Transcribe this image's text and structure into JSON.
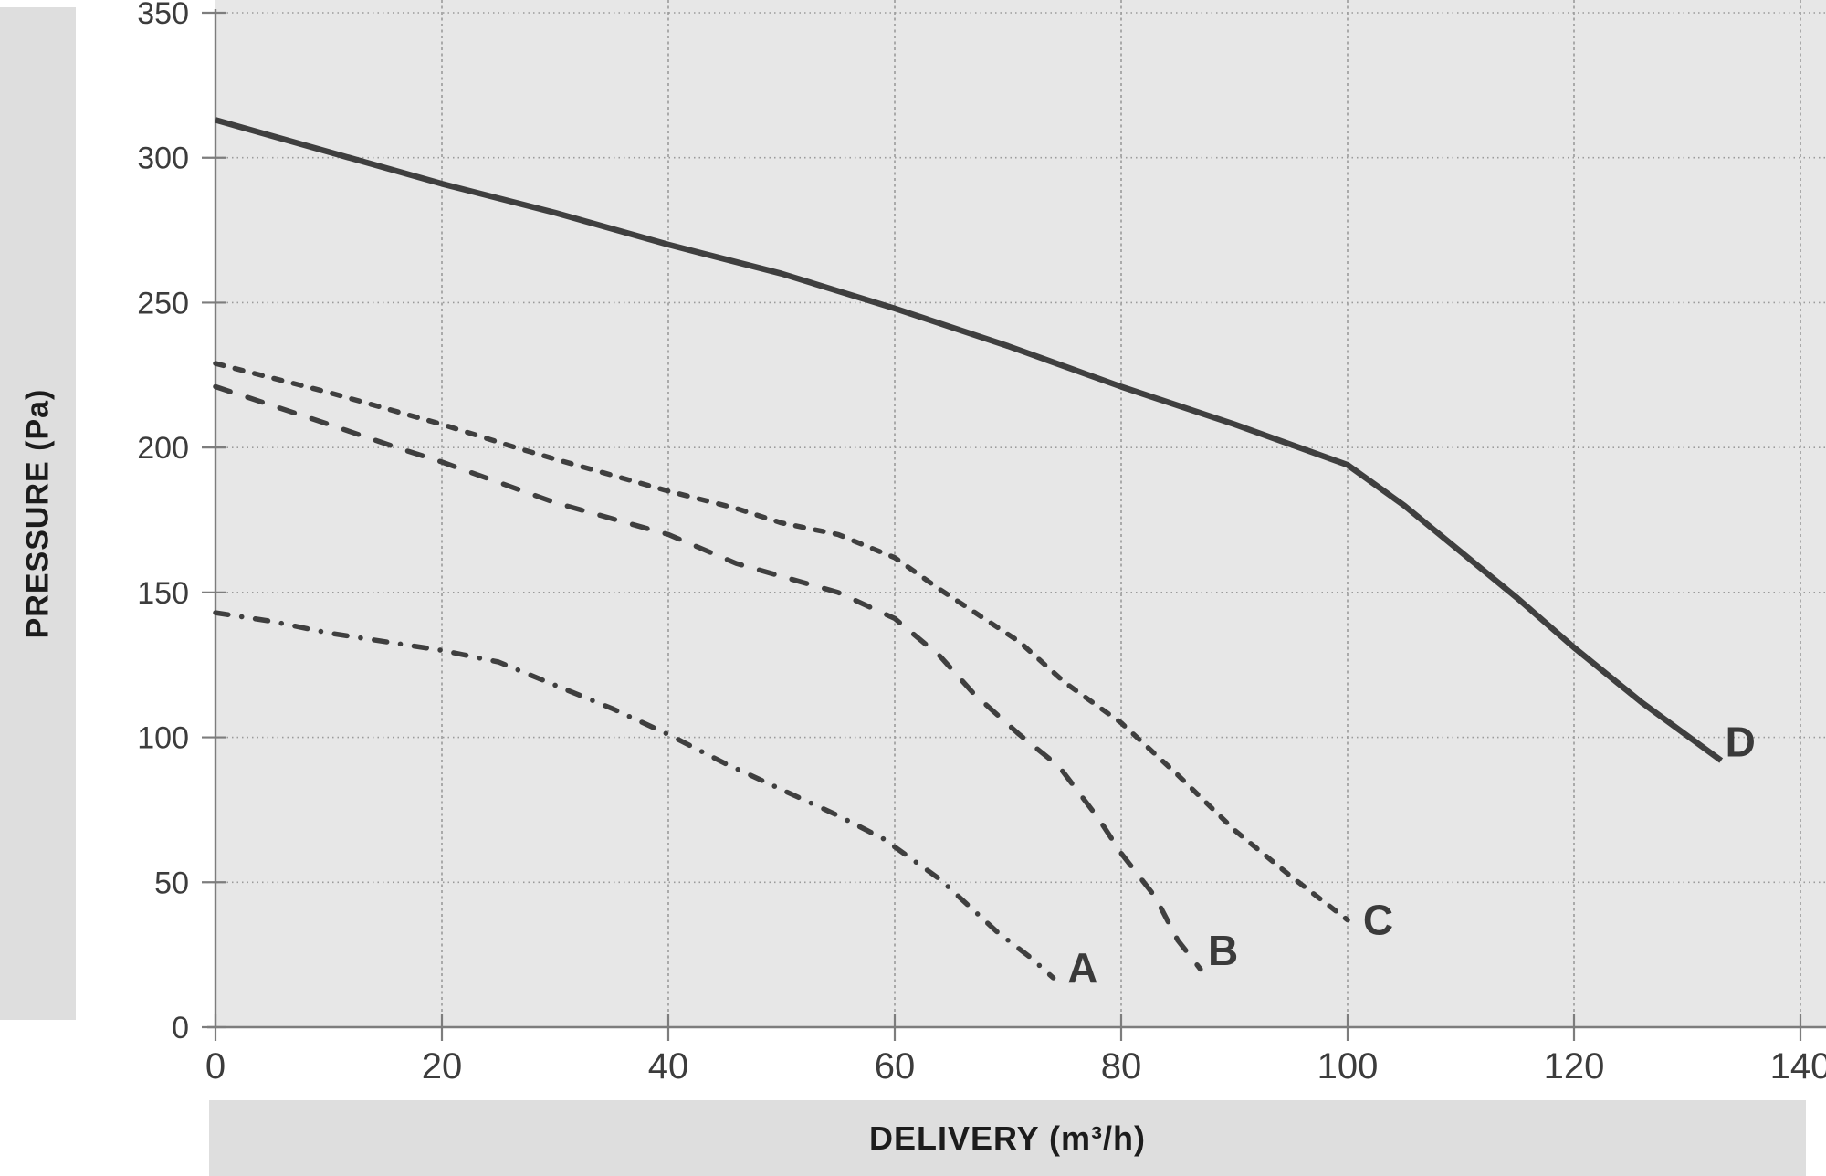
{
  "y_axis": {
    "title": "PRESSURE (Pa)",
    "ticks": [
      0,
      50,
      100,
      150,
      200,
      250,
      300,
      350
    ],
    "range": [
      0,
      350
    ]
  },
  "x_axis": {
    "title": "DELIVERY (m³/h)",
    "ticks": [
      0,
      20,
      40,
      60,
      80,
      100,
      120,
      140
    ],
    "range": [
      0,
      140
    ]
  },
  "colors": {
    "plot_background": "#e7e7e7",
    "side_strip": "#dedede",
    "gridline": "#9b9b9b",
    "axis": "#7d7d7d",
    "curve": "#3f3f3f",
    "tick_text": "#3c3c3c",
    "title_text": "#1c1c1c"
  },
  "chart_data": {
    "type": "line",
    "title": "",
    "xlabel": "DELIVERY (m³/h)",
    "ylabel": "PRESSURE (Pa)",
    "xlim": [
      0,
      140
    ],
    "ylim": [
      0,
      350
    ],
    "grid": true,
    "legend_position": "inline-end-labels",
    "series": [
      {
        "name": "A",
        "line_style": "dash-dot",
        "label_at": [
          76.6,
          20.5
        ],
        "points": [
          [
            0,
            143
          ],
          [
            5,
            140
          ],
          [
            10,
            136
          ],
          [
            15,
            133
          ],
          [
            20,
            130
          ],
          [
            25,
            126
          ],
          [
            30,
            118
          ],
          [
            35,
            110
          ],
          [
            40,
            101
          ],
          [
            45,
            91
          ],
          [
            50,
            82
          ],
          [
            55,
            73
          ],
          [
            59,
            65
          ],
          [
            64,
            51
          ],
          [
            69,
            33
          ],
          [
            72,
            24
          ],
          [
            74,
            17
          ]
        ]
      },
      {
        "name": "B",
        "line_style": "long-dash",
        "label_at": [
          89,
          26.5
        ],
        "points": [
          [
            0,
            221
          ],
          [
            10,
            208
          ],
          [
            16,
            200
          ],
          [
            20,
            195
          ],
          [
            30,
            181
          ],
          [
            40,
            170
          ],
          [
            46,
            160
          ],
          [
            55,
            150
          ],
          [
            60,
            141
          ],
          [
            64,
            128
          ],
          [
            67,
            115
          ],
          [
            71,
            101
          ],
          [
            74.5,
            90
          ],
          [
            78,
            72
          ],
          [
            80,
            60
          ],
          [
            83,
            45
          ],
          [
            85,
            30
          ],
          [
            87,
            20
          ]
        ]
      },
      {
        "name": "C",
        "line_style": "short-dash",
        "label_at": [
          102.7,
          37
        ],
        "points": [
          [
            0,
            229
          ],
          [
            10,
            219
          ],
          [
            20,
            208
          ],
          [
            26.5,
            200
          ],
          [
            30,
            196
          ],
          [
            40,
            185
          ],
          [
            46,
            179
          ],
          [
            50,
            174
          ],
          [
            55,
            170
          ],
          [
            60,
            162
          ],
          [
            64,
            151
          ],
          [
            71,
            133
          ],
          [
            75,
            119
          ],
          [
            80,
            105
          ],
          [
            85,
            87
          ],
          [
            90,
            68
          ],
          [
            95,
            52
          ],
          [
            100,
            37
          ]
        ]
      },
      {
        "name": "D",
        "line_style": "solid",
        "label_at": [
          134.7,
          98.5
        ],
        "points": [
          [
            0,
            313
          ],
          [
            10,
            302
          ],
          [
            20,
            291
          ],
          [
            30,
            281
          ],
          [
            40,
            270
          ],
          [
            45,
            265
          ],
          [
            50,
            260
          ],
          [
            60,
            248
          ],
          [
            70,
            235
          ],
          [
            80,
            221
          ],
          [
            90,
            208
          ],
          [
            100,
            194
          ],
          [
            105,
            180
          ],
          [
            110,
            164
          ],
          [
            115,
            148
          ],
          [
            120,
            131
          ],
          [
            126,
            112
          ],
          [
            133,
            92
          ]
        ]
      }
    ]
  }
}
